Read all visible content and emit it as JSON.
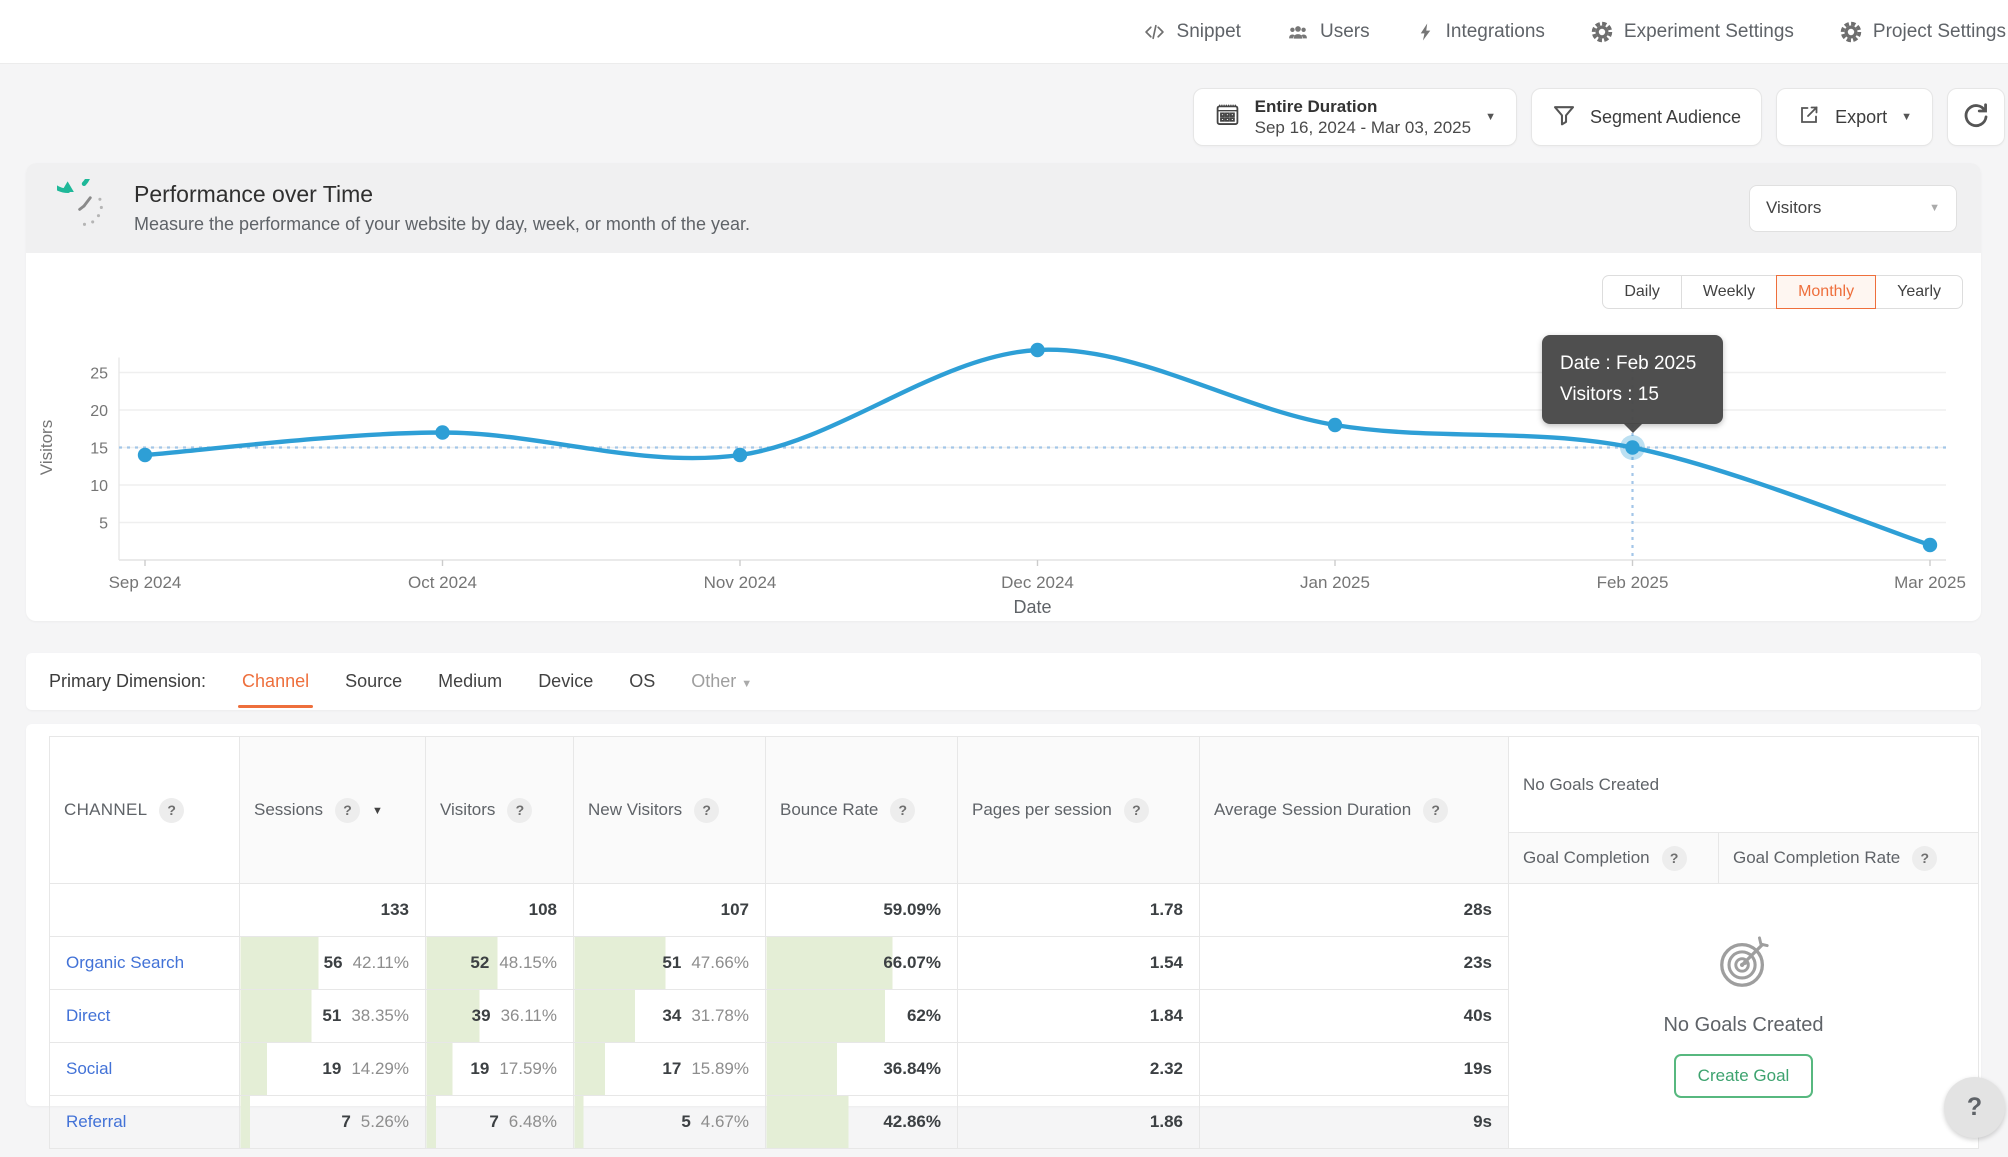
{
  "colors": {
    "accent_orange": "#ee6f3c",
    "chart_line_blue": "#2e9fd6",
    "hover_dash_blue": "#a3c6e8",
    "tooltip_bg": "#484848",
    "bar_green": "#e4eed6",
    "link_blue": "#4272d7",
    "history_icon_teal": "#1fb899",
    "goal_button_green": "#57b87f"
  },
  "topnav": {
    "items": [
      {
        "icon": "code-icon",
        "label": "Snippet"
      },
      {
        "icon": "users-icon",
        "label": "Users"
      },
      {
        "icon": "lightning-icon",
        "label": "Integrations"
      },
      {
        "icon": "gear-icon",
        "label": "Experiment Settings"
      },
      {
        "icon": "gear-icon",
        "label": "Project Settings"
      }
    ]
  },
  "toolbar": {
    "date_range": {
      "title": "Entire Duration",
      "range": "Sep 16, 2024 - Mar 03, 2025"
    },
    "segment_audience_label": "Segment Audience",
    "export_label": "Export"
  },
  "section_header": {
    "title": "Performance over Time",
    "subtitle": "Measure the performance of your website by day, week, or month of the year.",
    "metric_dropdown_value": "Visitors"
  },
  "chart_card": {
    "period_tabs": [
      {
        "label": "Daily",
        "active": false
      },
      {
        "label": "Weekly",
        "active": false
      },
      {
        "label": "Monthly",
        "active": true
      },
      {
        "label": "Yearly",
        "active": false
      }
    ],
    "tooltip": {
      "line1": "Date : Feb 2025",
      "line2": "Visitors : 15"
    }
  },
  "chart_data": {
    "type": "line",
    "x": [
      "Sep 2024",
      "Oct 2024",
      "Nov 2024",
      "Dec 2024",
      "Jan 2025",
      "Feb 2025",
      "Mar 2025"
    ],
    "series": [
      {
        "name": "Visitors",
        "values": [
          14,
          17,
          14,
          28,
          18,
          15,
          2
        ]
      }
    ],
    "xlabel": "Date",
    "ylabel": "Visitors",
    "ylim": [
      0,
      30
    ],
    "yticks": [
      5,
      10,
      15,
      20,
      25
    ],
    "grid": true,
    "legend": "none",
    "highlight": {
      "index": 5,
      "x": "Feb 2025",
      "value": 15
    }
  },
  "dimension_bar": {
    "label": "Primary Dimension:",
    "tabs": [
      {
        "label": "Channel",
        "active": true
      },
      {
        "label": "Source",
        "active": false
      },
      {
        "label": "Medium",
        "active": false
      },
      {
        "label": "Device",
        "active": false
      },
      {
        "label": "OS",
        "active": false
      },
      {
        "label": "Other",
        "active": false,
        "dropdown": true,
        "muted": true
      }
    ]
  },
  "table": {
    "columns": [
      {
        "label": "CHANNEL",
        "help": true
      },
      {
        "label": "Sessions",
        "help": true,
        "sort": "desc"
      },
      {
        "label": "Visitors",
        "help": true
      },
      {
        "label": "New Visitors",
        "help": true
      },
      {
        "label": "Bounce Rate",
        "help": true
      },
      {
        "label": "Pages per session",
        "help": true
      },
      {
        "label": "Average Session Duration",
        "help": true
      }
    ],
    "goals_header": {
      "title": "No Goals Created",
      "columns": [
        {
          "label": "Goal Completion",
          "help": true
        },
        {
          "label": "Goal Completion Rate",
          "help": true
        }
      ]
    },
    "totals": {
      "sessions": "133",
      "visitors": "108",
      "new_visitors": "107",
      "bounce_rate": "59.09%",
      "pages_per_session": "1.78",
      "avg_session_duration": "28s"
    },
    "rows": [
      {
        "channel": "Organic Search",
        "sessions": {
          "value": "56",
          "pct": "42.11%",
          "bar": 42.11
        },
        "visitors": {
          "value": "52",
          "pct": "48.15%",
          "bar": 48.15
        },
        "new_visitors": {
          "value": "51",
          "pct": "47.66%",
          "bar": 47.66
        },
        "bounce_rate": {
          "value": "66.07%",
          "bar": 66.07
        },
        "pages_per_session": "1.54",
        "avg_session_duration": "23s"
      },
      {
        "channel": "Direct",
        "sessions": {
          "value": "51",
          "pct": "38.35%",
          "bar": 38.35
        },
        "visitors": {
          "value": "39",
          "pct": "36.11%",
          "bar": 36.11
        },
        "new_visitors": {
          "value": "34",
          "pct": "31.78%",
          "bar": 31.78
        },
        "bounce_rate": {
          "value": "62%",
          "bar": 62
        },
        "pages_per_session": "1.84",
        "avg_session_duration": "40s"
      },
      {
        "channel": "Social",
        "sessions": {
          "value": "19",
          "pct": "14.29%",
          "bar": 14.29
        },
        "visitors": {
          "value": "19",
          "pct": "17.59%",
          "bar": 17.59
        },
        "new_visitors": {
          "value": "17",
          "pct": "15.89%",
          "bar": 15.89
        },
        "bounce_rate": {
          "value": "36.84%",
          "bar": 36.84
        },
        "pages_per_session": "2.32",
        "avg_session_duration": "19s"
      },
      {
        "channel": "Referral",
        "sessions": {
          "value": "7",
          "pct": "5.26%",
          "bar": 5.26
        },
        "visitors": {
          "value": "7",
          "pct": "6.48%",
          "bar": 6.48
        },
        "new_visitors": {
          "value": "5",
          "pct": "4.67%",
          "bar": 4.67
        },
        "bounce_rate": {
          "value": "42.86%",
          "bar": 42.86
        },
        "pages_per_session": "1.86",
        "avg_session_duration": "9s"
      }
    ],
    "goals_empty": {
      "message": "No Goals Created",
      "button_label": "Create Goal"
    }
  },
  "help_fab_label": "?"
}
